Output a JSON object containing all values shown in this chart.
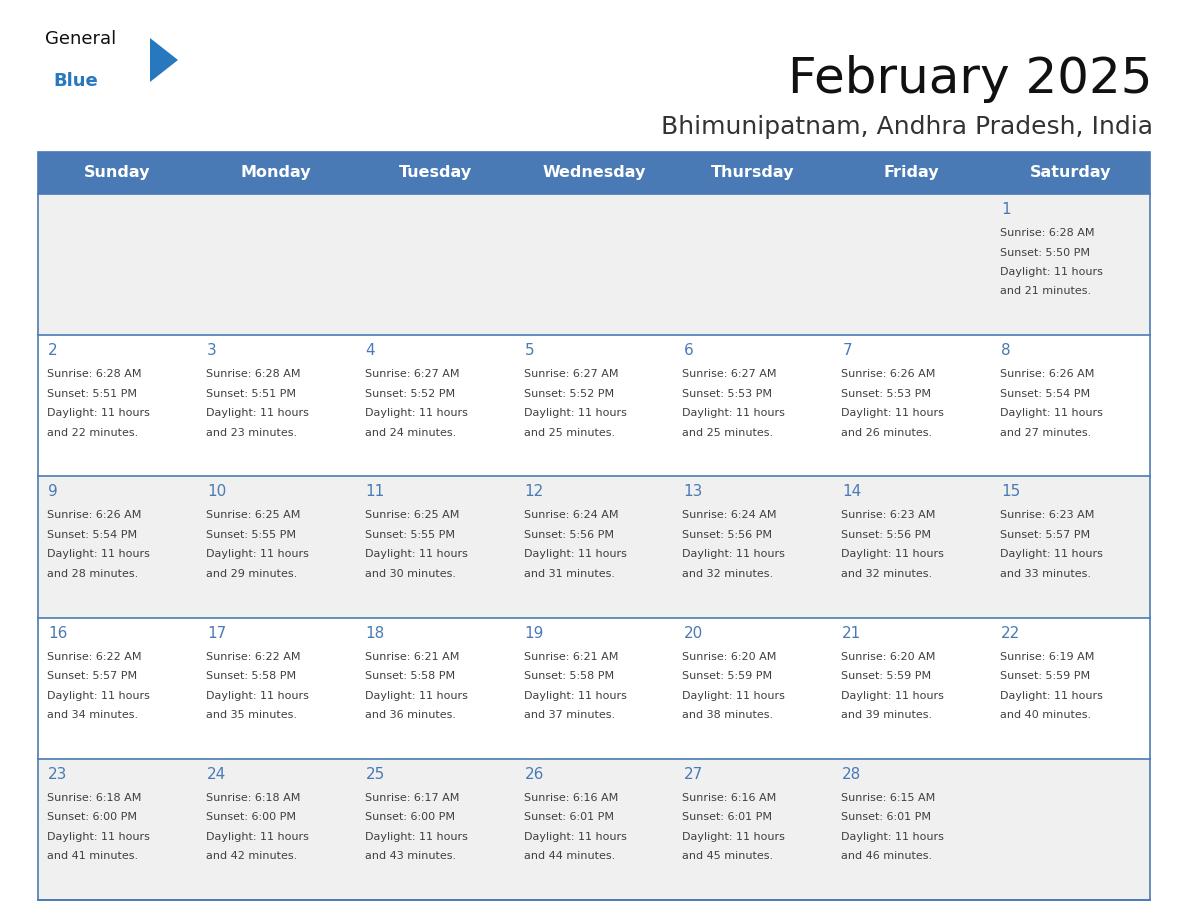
{
  "title": "February 2025",
  "subtitle": "Bhimunipatnam, Andhra Pradesh, India",
  "header_bg": "#4a7ab5",
  "header_text": "#FFFFFF",
  "day_names": [
    "Sunday",
    "Monday",
    "Tuesday",
    "Wednesday",
    "Thursday",
    "Friday",
    "Saturday"
  ],
  "row_bg_odd": "#f0f0f0",
  "row_bg_even": "#FFFFFF",
  "border_color": "#4a7ab5",
  "text_color": "#404040",
  "day_num_color": "#4a7ab5",
  "weeks": [
    [
      {
        "day": null,
        "sunrise": null,
        "sunset": null,
        "daylight_hours": null,
        "daylight_mins": null
      },
      {
        "day": null,
        "sunrise": null,
        "sunset": null,
        "daylight_hours": null,
        "daylight_mins": null
      },
      {
        "day": null,
        "sunrise": null,
        "sunset": null,
        "daylight_hours": null,
        "daylight_mins": null
      },
      {
        "day": null,
        "sunrise": null,
        "sunset": null,
        "daylight_hours": null,
        "daylight_mins": null
      },
      {
        "day": null,
        "sunrise": null,
        "sunset": null,
        "daylight_hours": null,
        "daylight_mins": null
      },
      {
        "day": null,
        "sunrise": null,
        "sunset": null,
        "daylight_hours": null,
        "daylight_mins": null
      },
      {
        "day": 1,
        "sunrise": "6:28 AM",
        "sunset": "5:50 PM",
        "daylight_hours": 11,
        "daylight_mins": 21
      }
    ],
    [
      {
        "day": 2,
        "sunrise": "6:28 AM",
        "sunset": "5:51 PM",
        "daylight_hours": 11,
        "daylight_mins": 22
      },
      {
        "day": 3,
        "sunrise": "6:28 AM",
        "sunset": "5:51 PM",
        "daylight_hours": 11,
        "daylight_mins": 23
      },
      {
        "day": 4,
        "sunrise": "6:27 AM",
        "sunset": "5:52 PM",
        "daylight_hours": 11,
        "daylight_mins": 24
      },
      {
        "day": 5,
        "sunrise": "6:27 AM",
        "sunset": "5:52 PM",
        "daylight_hours": 11,
        "daylight_mins": 25
      },
      {
        "day": 6,
        "sunrise": "6:27 AM",
        "sunset": "5:53 PM",
        "daylight_hours": 11,
        "daylight_mins": 25
      },
      {
        "day": 7,
        "sunrise": "6:26 AM",
        "sunset": "5:53 PM",
        "daylight_hours": 11,
        "daylight_mins": 26
      },
      {
        "day": 8,
        "sunrise": "6:26 AM",
        "sunset": "5:54 PM",
        "daylight_hours": 11,
        "daylight_mins": 27
      }
    ],
    [
      {
        "day": 9,
        "sunrise": "6:26 AM",
        "sunset": "5:54 PM",
        "daylight_hours": 11,
        "daylight_mins": 28
      },
      {
        "day": 10,
        "sunrise": "6:25 AM",
        "sunset": "5:55 PM",
        "daylight_hours": 11,
        "daylight_mins": 29
      },
      {
        "day": 11,
        "sunrise": "6:25 AM",
        "sunset": "5:55 PM",
        "daylight_hours": 11,
        "daylight_mins": 30
      },
      {
        "day": 12,
        "sunrise": "6:24 AM",
        "sunset": "5:56 PM",
        "daylight_hours": 11,
        "daylight_mins": 31
      },
      {
        "day": 13,
        "sunrise": "6:24 AM",
        "sunset": "5:56 PM",
        "daylight_hours": 11,
        "daylight_mins": 32
      },
      {
        "day": 14,
        "sunrise": "6:23 AM",
        "sunset": "5:56 PM",
        "daylight_hours": 11,
        "daylight_mins": 32
      },
      {
        "day": 15,
        "sunrise": "6:23 AM",
        "sunset": "5:57 PM",
        "daylight_hours": 11,
        "daylight_mins": 33
      }
    ],
    [
      {
        "day": 16,
        "sunrise": "6:22 AM",
        "sunset": "5:57 PM",
        "daylight_hours": 11,
        "daylight_mins": 34
      },
      {
        "day": 17,
        "sunrise": "6:22 AM",
        "sunset": "5:58 PM",
        "daylight_hours": 11,
        "daylight_mins": 35
      },
      {
        "day": 18,
        "sunrise": "6:21 AM",
        "sunset": "5:58 PM",
        "daylight_hours": 11,
        "daylight_mins": 36
      },
      {
        "day": 19,
        "sunrise": "6:21 AM",
        "sunset": "5:58 PM",
        "daylight_hours": 11,
        "daylight_mins": 37
      },
      {
        "day": 20,
        "sunrise": "6:20 AM",
        "sunset": "5:59 PM",
        "daylight_hours": 11,
        "daylight_mins": 38
      },
      {
        "day": 21,
        "sunrise": "6:20 AM",
        "sunset": "5:59 PM",
        "daylight_hours": 11,
        "daylight_mins": 39
      },
      {
        "day": 22,
        "sunrise": "6:19 AM",
        "sunset": "5:59 PM",
        "daylight_hours": 11,
        "daylight_mins": 40
      }
    ],
    [
      {
        "day": 23,
        "sunrise": "6:18 AM",
        "sunset": "6:00 PM",
        "daylight_hours": 11,
        "daylight_mins": 41
      },
      {
        "day": 24,
        "sunrise": "6:18 AM",
        "sunset": "6:00 PM",
        "daylight_hours": 11,
        "daylight_mins": 42
      },
      {
        "day": 25,
        "sunrise": "6:17 AM",
        "sunset": "6:00 PM",
        "daylight_hours": 11,
        "daylight_mins": 43
      },
      {
        "day": 26,
        "sunrise": "6:16 AM",
        "sunset": "6:01 PM",
        "daylight_hours": 11,
        "daylight_mins": 44
      },
      {
        "day": 27,
        "sunrise": "6:16 AM",
        "sunset": "6:01 PM",
        "daylight_hours": 11,
        "daylight_mins": 45
      },
      {
        "day": 28,
        "sunrise": "6:15 AM",
        "sunset": "6:01 PM",
        "daylight_hours": 11,
        "daylight_mins": 46
      },
      {
        "day": null,
        "sunrise": null,
        "sunset": null,
        "daylight_hours": null,
        "daylight_mins": null
      }
    ]
  ]
}
